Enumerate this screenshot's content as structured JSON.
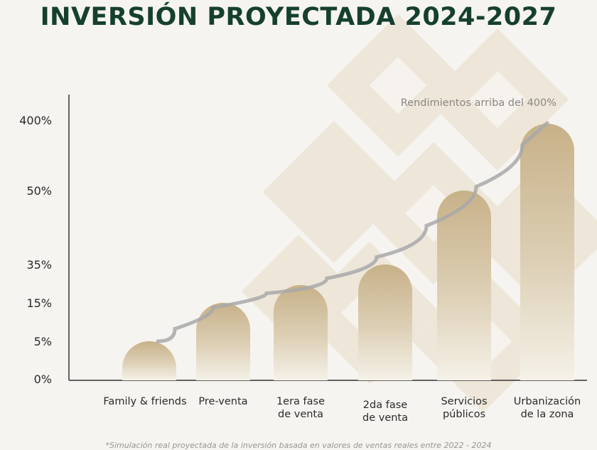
{
  "title": "INVERSIÓN PROYECTADA 2024-2027",
  "footnote": "*Simulación real proyectada de la inversión basada en valores de ventas reales entre 2022 - 2024",
  "colors": {
    "title": "#16402e",
    "bar_top": "#c9b48c",
    "bar_bottom": "#f3eee4",
    "curve": "#a9a9ab",
    "pattern": "#e7dcc9"
  },
  "chart_data": {
    "type": "bar",
    "title": "",
    "xlabel": "",
    "ylabel": "",
    "y_scale": "categorical-ticks",
    "y_ticks": [
      "0%",
      "5%",
      "15%",
      "35%",
      "50%",
      "400%"
    ],
    "categories": [
      [
        "Family & friends"
      ],
      [
        "Pre-venta"
      ],
      [
        "1era fase",
        "de venta"
      ],
      [
        "2da fase",
        "de venta"
      ],
      [
        "Servicios",
        "públicos"
      ],
      [
        "Urbanización",
        "de la zona"
      ]
    ],
    "values": [
      5,
      15,
      20,
      35,
      50,
      400
    ],
    "annotation": "Rendimientos arriba del 400%",
    "trend_line": true,
    "grid": false,
    "legend": "none"
  }
}
